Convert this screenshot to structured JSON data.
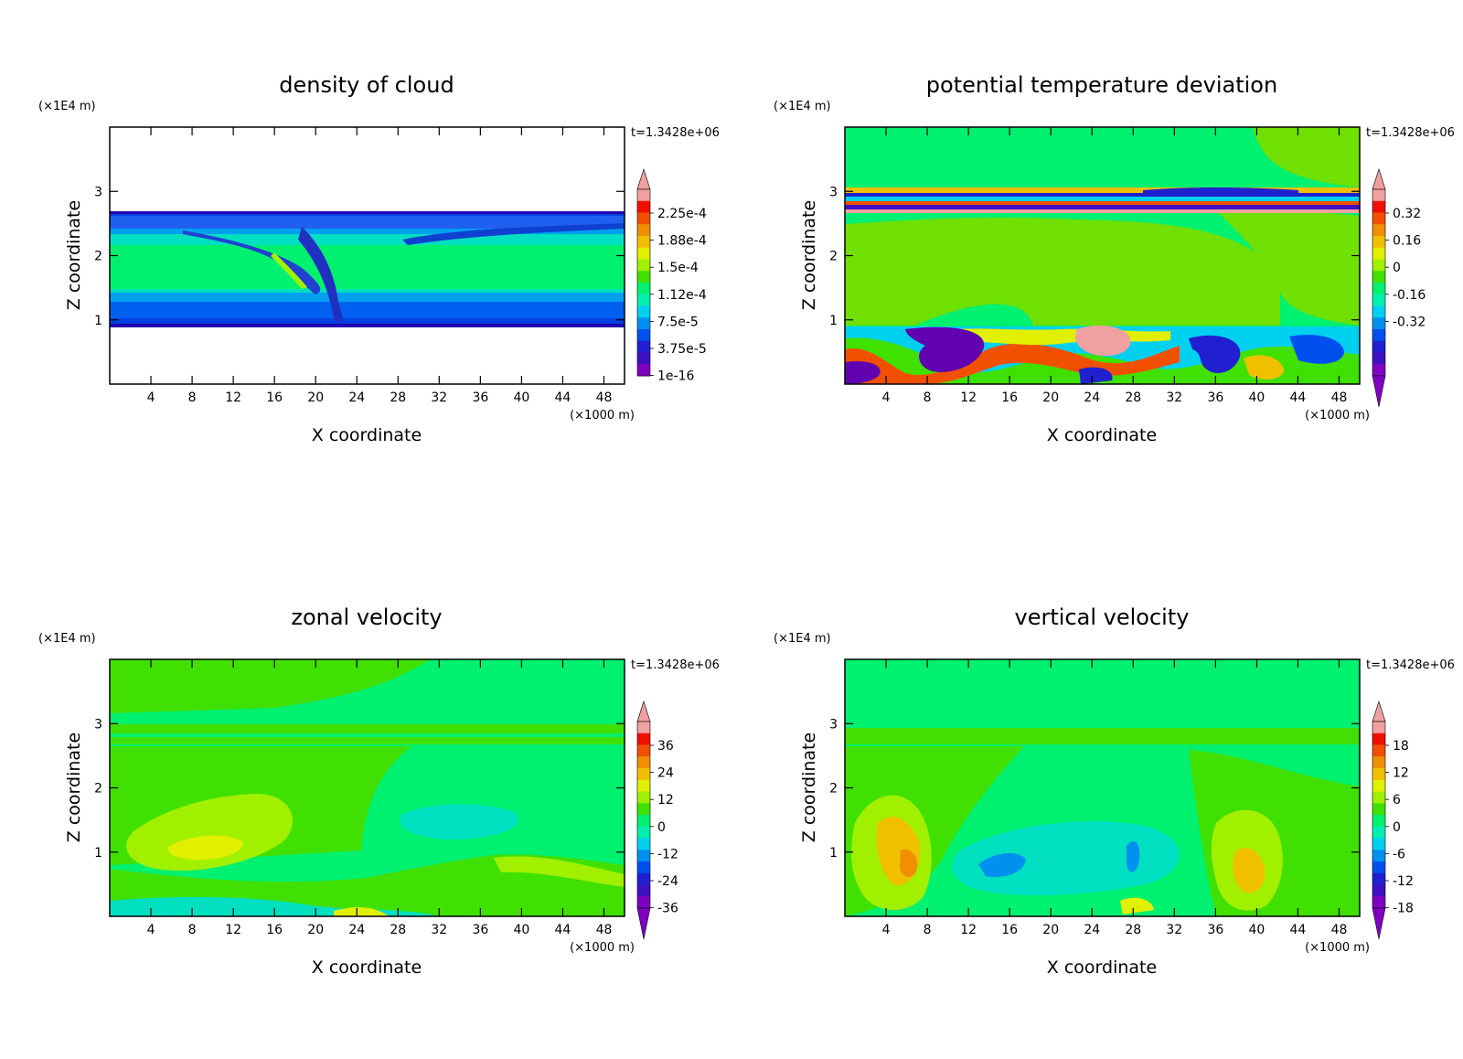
{
  "chart_data": [
    {
      "type": "heatmap",
      "title": "density of cloud",
      "xlabel": "X coordinate",
      "ylabel": "Z coordinate",
      "x_unit": "(×1000 m)",
      "y_unit": "(×1E4 m)",
      "time_label": "t=1.3428e+06",
      "xlim": [
        0,
        50
      ],
      "ylim": [
        0,
        4
      ],
      "x_ticks": [
        4,
        8,
        12,
        16,
        20,
        24,
        28,
        32,
        36,
        40,
        44,
        48
      ],
      "y_ticks": [
        1,
        2,
        3
      ],
      "colorbar": {
        "labels": [
          "2.25e-4",
          "1.88e-4",
          "1.5e-4",
          "1.12e-4",
          "7.5e-5",
          "3.75e-5",
          "1e-16"
        ],
        "min": 0,
        "max": 0.00026
      },
      "colors": {
        "background": "#ffffff",
        "fill": "#00f070",
        "edge": "#0040e0",
        "dark": "#2000b0"
      }
    },
    {
      "type": "heatmap",
      "title": "potential temperature deviation",
      "xlabel": "X coordinate",
      "ylabel": "Z coordinate",
      "x_unit": "(×1000 m)",
      "y_unit": "(×1E4 m)",
      "time_label": "t=1.3428e+06",
      "xlim": [
        0,
        50
      ],
      "ylim": [
        0,
        4
      ],
      "x_ticks": [
        4,
        8,
        12,
        16,
        20,
        24,
        28,
        32,
        36,
        40,
        44,
        48
      ],
      "y_ticks": [
        1,
        2,
        3
      ],
      "colorbar": {
        "labels": [
          "0.32",
          "0.16",
          "0",
          "-0.16",
          "-0.32"
        ],
        "min": -0.4,
        "max": 0.4
      },
      "colors": {
        "background": "#00f070",
        "fill": "#6fe000",
        "edge": "#0040e0",
        "dark": "#6000b0"
      }
    },
    {
      "type": "heatmap",
      "title": "zonal velocity",
      "xlabel": "X coordinate",
      "ylabel": "Z coordinate",
      "x_unit": "(×1000 m)",
      "y_unit": "(×1E4 m)",
      "time_label": "t=1.3428e+06",
      "xlim": [
        0,
        50
      ],
      "ylim": [
        0,
        4
      ],
      "x_ticks": [
        4,
        8,
        12,
        16,
        20,
        24,
        28,
        32,
        36,
        40,
        44,
        48
      ],
      "y_ticks": [
        1,
        2,
        3
      ],
      "colorbar": {
        "labels": [
          "36",
          "24",
          "12",
          "0",
          "-12",
          "-24",
          "-36"
        ],
        "min": -42,
        "max": 42
      },
      "colors": {
        "background": "#00f070",
        "fill": "#40e000",
        "edge": "#b0f000",
        "dark": "#f0f000"
      }
    },
    {
      "type": "heatmap",
      "title": "vertical velocity",
      "xlabel": "X coordinate",
      "ylabel": "Z coordinate",
      "x_unit": "(×1000 m)",
      "y_unit": "(×1E4 m)",
      "time_label": "t=1.3428e+06",
      "xlim": [
        0,
        50
      ],
      "ylim": [
        0,
        4
      ],
      "x_ticks": [
        4,
        8,
        12,
        16,
        20,
        24,
        28,
        32,
        36,
        40,
        44,
        48
      ],
      "y_ticks": [
        1,
        2,
        3
      ],
      "colorbar": {
        "labels": [
          "18",
          "12",
          "6",
          "0",
          "-6",
          "-12",
          "-18"
        ],
        "min": -21,
        "max": 21
      },
      "colors": {
        "background": "#00f070",
        "fill": "#40e000",
        "edge": "#f0c000",
        "dark": "#00c0f0"
      }
    }
  ],
  "colormap": [
    "#8000c0",
    "#4010c0",
    "#2020d0",
    "#0050f0",
    "#0090f0",
    "#00d0f0",
    "#00f0b0",
    "#00f070",
    "#40e000",
    "#a0f000",
    "#e0f000",
    "#f0c000",
    "#f09000",
    "#f05000",
    "#f01000",
    "#f0a0a0"
  ]
}
